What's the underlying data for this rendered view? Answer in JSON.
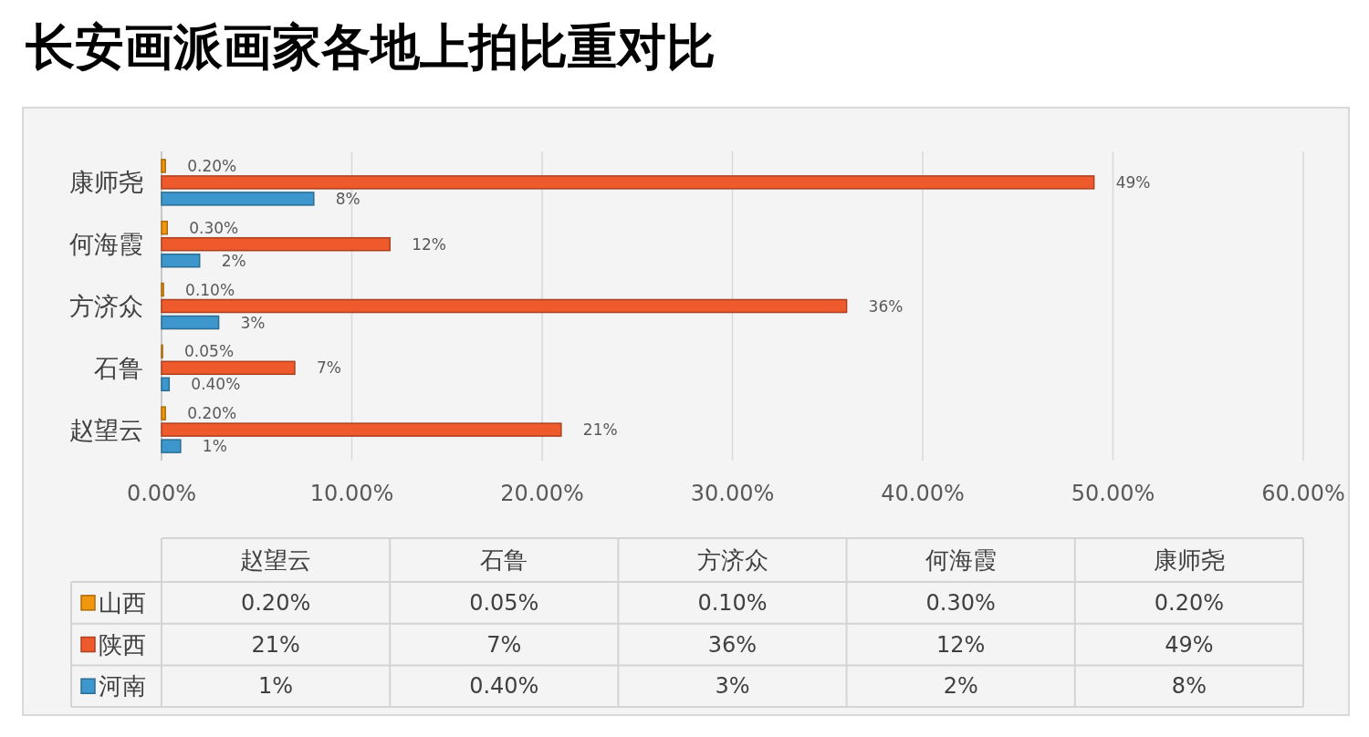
{
  "chart_data": {
    "type": "bar",
    "orientation": "horizontal",
    "title": "长安画派画家各地上拍比重对比",
    "categories": [
      "康师尧",
      "何海霞",
      "方济众",
      "石鲁",
      "赵望云"
    ],
    "series": [
      {
        "name": "山西",
        "color": "#f0960f",
        "values": [
          0.2,
          0.3,
          0.1,
          0.05,
          0.2
        ],
        "value_labels": [
          "0.20%",
          "0.30%",
          "0.10%",
          "0.05%",
          "0.20%"
        ]
      },
      {
        "name": "陕西",
        "color": "#ee5a2c",
        "values": [
          49,
          12,
          36,
          7,
          21
        ],
        "value_labels": [
          "49%",
          "12%",
          "36%",
          "7%",
          "21%"
        ]
      },
      {
        "name": "河南",
        "color": "#3d97cc",
        "values": [
          8,
          2,
          3,
          0.4,
          1
        ],
        "value_labels": [
          "8%",
          "2%",
          "3%",
          "0.40%",
          "1%"
        ]
      }
    ],
    "xlim": [
      0,
      60
    ],
    "xticks": [
      {
        "value": 0,
        "label": "0.00%"
      },
      {
        "value": 10,
        "label": "10.00%"
      },
      {
        "value": 20,
        "label": "20.00%"
      },
      {
        "value": 30,
        "label": "30.00%"
      },
      {
        "value": 40,
        "label": "40.00%"
      },
      {
        "value": 50,
        "label": "50.00%"
      },
      {
        "value": 60,
        "label": "60.00%"
      }
    ],
    "grid": "x",
    "legend": "bottom"
  }
}
